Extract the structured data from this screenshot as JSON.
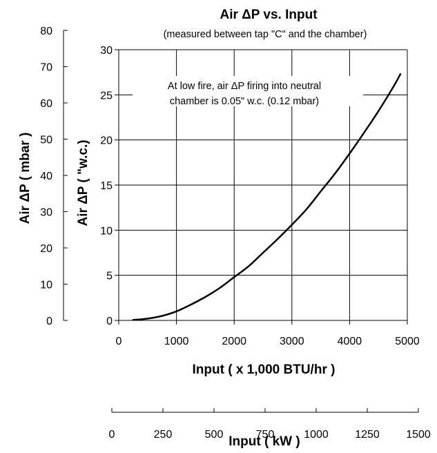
{
  "chart_data": {
    "type": "line",
    "title": "Air ΔP vs. Input",
    "subtitle": "(measured between tap \"C\" and the chamber)",
    "annotation": [
      "At low fire, air ΔP firing into neutral",
      "chamber is 0.05\" w.c. (0.12 mbar)"
    ],
    "xlabel": "Input ( x 1,000 BTU/hr )",
    "x2label": "Input ( kW )",
    "ylabel": "Air ΔP ( \"w.c.)",
    "y2label": "Air ΔP ( mbar )",
    "xlim": [
      0,
      5000
    ],
    "ylim": [
      0,
      30
    ],
    "x2lim": [
      0,
      1500
    ],
    "y2lim": [
      0,
      80
    ],
    "x_ticks": [
      "0",
      "1000",
      "2000",
      "3000",
      "4000",
      "5000"
    ],
    "y_ticks": [
      "0",
      "5",
      "10",
      "15",
      "20",
      "25",
      "30"
    ],
    "x2_ticks": [
      "0",
      "250",
      "500",
      "750",
      "1000",
      "1250",
      "1500"
    ],
    "y2_ticks": [
      "0",
      "10",
      "20",
      "30",
      "40",
      "50",
      "60",
      "70",
      "80"
    ],
    "grid": true,
    "series": [
      {
        "x": [
          250,
          500,
          750,
          1000,
          1250,
          1500,
          1750,
          2000,
          2250,
          2500,
          2750,
          3000,
          3250,
          3500,
          3750,
          4000,
          4250,
          4500,
          4750,
          4880
        ],
        "y": [
          0.05,
          0.2,
          0.5,
          1.0,
          1.75,
          2.6,
          3.6,
          4.8,
          6.0,
          7.5,
          9.0,
          10.6,
          12.3,
          14.3,
          16.3,
          18.5,
          20.8,
          23.2,
          25.8,
          27.3
        ]
      }
    ],
    "colors": {
      "line": "#000000",
      "grid": "#000000",
      "axis": "#000000"
    }
  }
}
